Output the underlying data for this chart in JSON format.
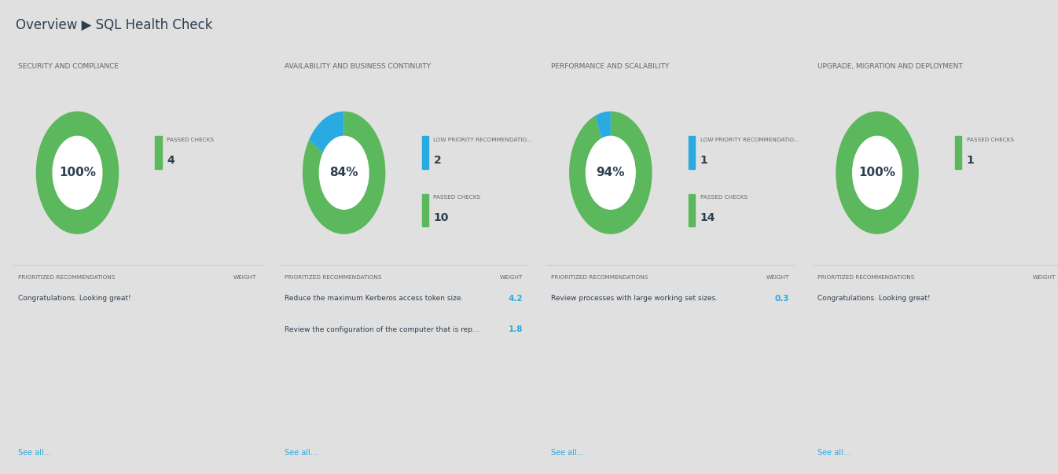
{
  "title": "Overview ▶ SQL Health Check",
  "bg_color": "#e0e0e0",
  "card_bg": "#ffffff",
  "header_bg": "#d8d8d8",
  "panels": [
    {
      "title": "SECURITY AND COMPLIANCE",
      "percent_label": "100%",
      "donut_green": 100,
      "donut_blue": 0,
      "legend": [
        {
          "color": "#5cb85c",
          "label": "PASSED CHECKS",
          "value": "4"
        }
      ],
      "recommendations": [
        {
          "text": "Congratulations. Looking great!",
          "weight": null
        }
      ],
      "see_all": "See all..."
    },
    {
      "title": "AVAILABILITY AND BUSINESS CONTINUITY",
      "percent_label": "84%",
      "donut_green": 84,
      "donut_blue": 16,
      "legend": [
        {
          "color": "#29abe2",
          "label": "LOW PRIORITY RECOMMENDATIO...",
          "value": "2"
        },
        {
          "color": "#5cb85c",
          "label": "PASSED CHECKS",
          "value": "10"
        }
      ],
      "recommendations": [
        {
          "text": "Reduce the maximum Kerberos access token size.",
          "weight": "4.2"
        },
        {
          "text": "Review the configuration of the computer that is rep...",
          "weight": "1.8"
        }
      ],
      "see_all": "See all..."
    },
    {
      "title": "PERFORMANCE AND SCALABILITY",
      "percent_label": "94%",
      "donut_green": 94,
      "donut_blue": 6,
      "legend": [
        {
          "color": "#29abe2",
          "label": "LOW PRIORITY RECOMMENDATIO...",
          "value": "1"
        },
        {
          "color": "#5cb85c",
          "label": "PASSED CHECKS",
          "value": "14"
        }
      ],
      "recommendations": [
        {
          "text": "Review processes with large working set sizes.",
          "weight": "0.3"
        }
      ],
      "see_all": "See all..."
    },
    {
      "title": "UPGRADE, MIGRATION AND DEPLOYMENT",
      "percent_label": "100%",
      "donut_green": 100,
      "donut_blue": 0,
      "legend": [
        {
          "color": "#5cb85c",
          "label": "PASSED CHECKS",
          "value": "1"
        }
      ],
      "recommendations": [
        {
          "text": "Congratulations. Looking great!",
          "weight": null
        }
      ],
      "see_all": "See all..."
    }
  ],
  "green": "#5cb85c",
  "blue": "#29abe2",
  "text_dark": "#2c3e50",
  "text_gray": "#666666",
  "weight_blue": "#29abe2",
  "see_all_color": "#29abe2"
}
